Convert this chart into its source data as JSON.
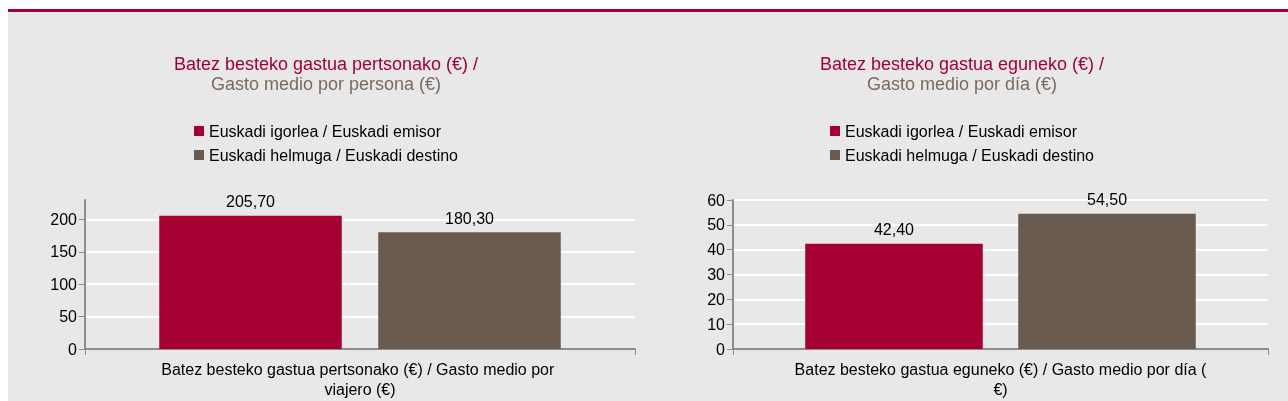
{
  "chart_data": [
    {
      "type": "bar",
      "title": "Batez besteko gastua pertsonako (€) /",
      "subtitle": "Gasto medio por persona (€)",
      "categories": [
        "Batez besteko gastua pertsonako (€) / Gasto medio por viajero (€)"
      ],
      "series": [
        {
          "name": "Euskadi igorlea / Euskadi emisor",
          "color": "#a50032",
          "values": [
            205.7
          ],
          "value_labels": [
            "205,70"
          ]
        },
        {
          "name": "Euskadi helmuga / Euskadi destino",
          "color": "#695a50",
          "values": [
            180.3
          ],
          "value_labels": [
            "180,30"
          ]
        }
      ],
      "ylim": [
        0,
        230
      ],
      "yticks": [
        0,
        50,
        100,
        150,
        200
      ],
      "grid": "y",
      "legend": "top"
    },
    {
      "type": "bar",
      "title": "Batez besteko gastua eguneko (€) /",
      "subtitle": "Gasto medio por día (€)",
      "categories": [
        "Batez besteko gastua eguneko (€) / Gasto medio por día (€)"
      ],
      "series": [
        {
          "name": "Euskadi igorlea / Euskadi emisor",
          "color": "#a50032",
          "values": [
            42.4
          ],
          "value_labels": [
            "42,40"
          ]
        },
        {
          "name": "Euskadi helmuga / Euskadi destino",
          "color": "#695a50",
          "values": [
            54.5
          ],
          "value_labels": [
            "54,50"
          ]
        }
      ],
      "ylim": [
        0,
        60
      ],
      "yticks": [
        0,
        10,
        20,
        30,
        40,
        50,
        60
      ],
      "grid": "y",
      "legend": "top"
    }
  ]
}
